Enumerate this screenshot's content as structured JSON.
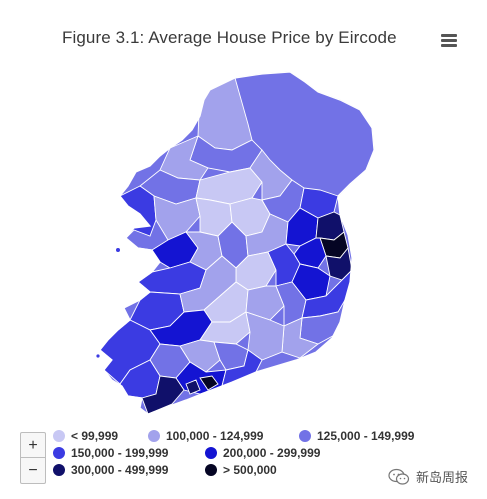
{
  "title": "Figure 3.1: Average House Price by Eircode",
  "menu": {
    "icon": "hamburger-menu-icon"
  },
  "zoom": {
    "in_label": "+",
    "out_label": "−"
  },
  "colors": {
    "band1": "#c8c8f4",
    "band2": "#a2a2ec",
    "band3": "#7272e6",
    "band4": "#3b3be2",
    "band5": "#1414d2",
    "band6": "#10106a",
    "band7": "#050524",
    "no_data": "#f2f2f2",
    "border": "#ffffff"
  },
  "legend": [
    {
      "label": "< 99,999",
      "color": "#c8c8f4"
    },
    {
      "label": "100,000 - 124,999",
      "color": "#a2a2ec"
    },
    {
      "label": "125,000 - 149,999",
      "color": "#7272e6"
    },
    {
      "label": "150,000 - 199,999",
      "color": "#3b3be2"
    },
    {
      "label": "200,000 - 299,999",
      "color": "#1414d2"
    },
    {
      "label": "300,000 - 499,999",
      "color": "#10106a"
    },
    {
      "label": "> 500,000",
      "color": "#050524"
    }
  ],
  "watermark": {
    "text": "新岛周报",
    "icon": "wechat-icon"
  }
}
